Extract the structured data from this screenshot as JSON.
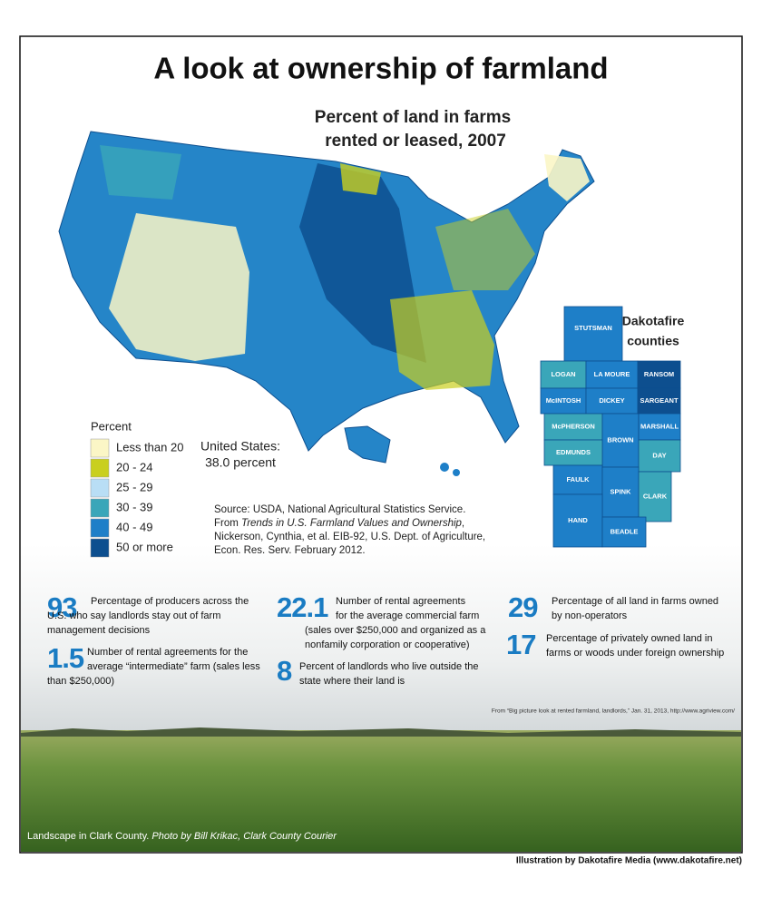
{
  "title": "A look at ownership of farmland",
  "map": {
    "title_lines": [
      "Percent of land in farms",
      "rented or leased, 2007"
    ],
    "legend": {
      "title": "Percent",
      "items": [
        {
          "label": "Less than 20",
          "color": "#fbf6c6"
        },
        {
          "label": "20 - 24",
          "color": "#c9cf1f"
        },
        {
          "label": "25 - 29",
          "color": "#b9def5"
        },
        {
          "label": "30 - 39",
          "color": "#3aa6b9"
        },
        {
          "label": "40 - 49",
          "color": "#1e7fc8"
        },
        {
          "label": "50 or more",
          "color": "#0d4f8f"
        }
      ]
    },
    "us_total": [
      "United States:",
      "38.0 percent"
    ],
    "source": {
      "line1": "Source: USDA, National Agricultural Statistics Service.",
      "line2_prefix": "From ",
      "line2_title": "Trends in U.S. Farmland Values and Ownership",
      "line2_suffix": ",",
      "line3": "Nickerson, Cynthia, et al. EIB-92, U.S. Dept. of Agriculture,",
      "line4": "Econ. Res. Serv. February 2012."
    }
  },
  "dakotafire": {
    "title_lines": [
      "Dakotafire",
      "counties"
    ],
    "counties": [
      {
        "name": "STUTSMAN",
        "color": "#1e7fc8"
      },
      {
        "name": "LOGAN",
        "color": "#3aa6b9"
      },
      {
        "name": "LA MOURE",
        "color": "#1e7fc8"
      },
      {
        "name": "RANSOM",
        "color": "#0d4f8f"
      },
      {
        "name": "McINTOSH",
        "color": "#1e7fc8"
      },
      {
        "name": "DICKEY",
        "color": "#1e7fc8"
      },
      {
        "name": "SARGEANT",
        "color": "#0d4f8f"
      },
      {
        "name": "McPHERSON",
        "color": "#3aa6b9"
      },
      {
        "name": "BROWN",
        "color": "#1e7fc8"
      },
      {
        "name": "MARSHALL",
        "color": "#1e7fc8"
      },
      {
        "name": "EDMUNDS",
        "color": "#3aa6b9"
      },
      {
        "name": "DAY",
        "color": "#3aa6b9"
      },
      {
        "name": "FAULK",
        "color": "#1e7fc8"
      },
      {
        "name": "SPINK",
        "color": "#1e7fc8"
      },
      {
        "name": "CLARK",
        "color": "#3aa6b9"
      },
      {
        "name": "HAND",
        "color": "#1e7fc8"
      },
      {
        "name": "BEADLE",
        "color": "#1e7fc8"
      }
    ]
  },
  "stats": [
    {
      "value": "93",
      "lines": [
        "Percentage of producers across the",
        "U.S. who say landlords stay out of farm",
        "management decisions"
      ]
    },
    {
      "value": "1.5",
      "lines": [
        "Number of rental agreements for the",
        "average “intermediate” farm (sales less",
        "than $250,000)"
      ]
    },
    {
      "value": "22.1",
      "lines": [
        "Number of rental agreements",
        "for the average commercial farm",
        "(sales over $250,000 and organized as a",
        "nonfamily corporation or cooperative)"
      ]
    },
    {
      "value": "8",
      "lines": [
        "Percent of landlords who live outside the",
        "state where their land is"
      ]
    },
    {
      "value": "29",
      "lines": [
        "Percentage of all land in farms owned",
        "by non-operators"
      ]
    },
    {
      "value": "17",
      "lines": [
        "Percentage of privately owned land in",
        "farms or woods under foreign ownership"
      ]
    }
  ],
  "citation": "From “Big picture look at rented farmland, landlords,” Jan. 31, 2013, http://www.agriview.com/",
  "photo_caption": {
    "place": "Landscape in Clark County.",
    "credit": "Photo by Bill Krikac, Clark County Courier"
  },
  "credit": "Illustration by Dakotafire Media (www.dakotafire.net)"
}
